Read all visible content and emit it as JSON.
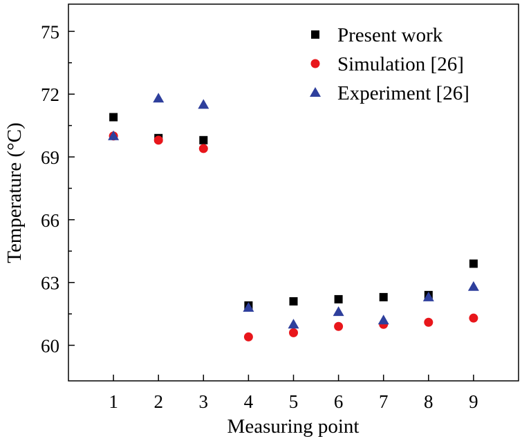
{
  "chart_data": {
    "type": "scatter",
    "title": "",
    "xlabel": "Measuring point",
    "ylabel": "Temperature (°C)",
    "xlim": [
      0,
      10
    ],
    "ylim": [
      58.3,
      76.3
    ],
    "x": [
      1,
      2,
      3,
      4,
      5,
      6,
      7,
      8,
      9
    ],
    "x_ticks": [
      1,
      2,
      3,
      4,
      5,
      6,
      7,
      8,
      9
    ],
    "x_tick_labels": [
      "1",
      "2",
      "3",
      "4",
      "5",
      "6",
      "7",
      "8",
      "9"
    ],
    "y_ticks": [
      60,
      63,
      66,
      69,
      72,
      75
    ],
    "y_tick_labels": [
      "60",
      "63",
      "66",
      "69",
      "72",
      "75"
    ],
    "grid": false,
    "legend_position": "top-right",
    "series": [
      {
        "name": "Present work",
        "marker": "square",
        "color": "#000000",
        "values": [
          70.9,
          69.9,
          69.8,
          61.9,
          62.1,
          62.2,
          62.3,
          62.4,
          63.9
        ]
      },
      {
        "name": "Simulation [26]",
        "marker": "circle",
        "color": "#e8161b",
        "values": [
          70.0,
          69.8,
          69.4,
          60.4,
          60.6,
          60.9,
          61.0,
          61.1,
          61.3
        ]
      },
      {
        "name": "Experiment [26]",
        "marker": "triangle",
        "color": "#2e3f9c",
        "values": [
          70.0,
          71.8,
          71.5,
          61.8,
          61.0,
          61.6,
          61.2,
          62.3,
          62.8
        ]
      }
    ]
  }
}
